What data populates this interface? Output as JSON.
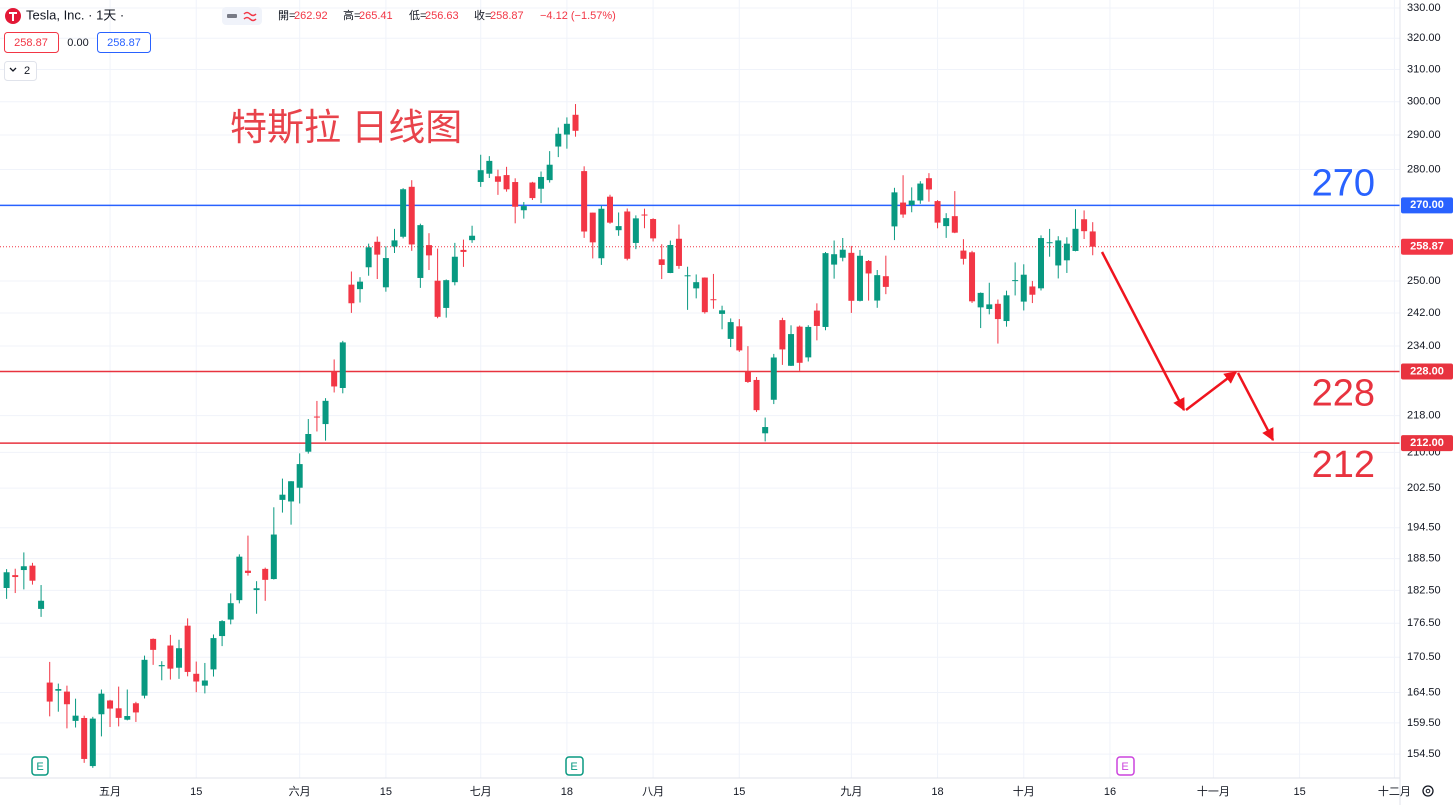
{
  "chart_data": {
    "type": "candlestick",
    "header": {
      "symbol": "Tesla, Inc. · 1天 ·",
      "ohlc": [
        [
          "開=",
          "262.92"
        ],
        [
          "高=",
          "265.41"
        ],
        [
          "低=",
          "256.63"
        ],
        [
          "收=",
          "258.87"
        ]
      ],
      "change": "−4.12 (−1.57%)",
      "bid": "258.87",
      "spread": "0.00",
      "ask": "258.87",
      "indicator_count": "2"
    },
    "annotation": "特斯拉 日线图",
    "earnings_markers": [
      "E",
      "E",
      "E"
    ],
    "log_scale": true,
    "grid": true,
    "up_color": "#089981",
    "down_color": "#f23645",
    "ylim": [
      150.8,
      332.7
    ],
    "yticks": [
      {
        "value": 330,
        "label": "330.00"
      },
      {
        "value": 320,
        "label": "320.00"
      },
      {
        "value": 310,
        "label": "310.00"
      },
      {
        "value": 300,
        "label": "300.00"
      },
      {
        "value": 290,
        "label": "290.00"
      },
      {
        "value": 280,
        "label": "280.00"
      },
      {
        "value": 250,
        "label": "250.00"
      },
      {
        "value": 242,
        "label": "242.00"
      },
      {
        "value": 234,
        "label": "234.00"
      },
      {
        "value": 218,
        "label": "218.00"
      },
      {
        "value": 210,
        "label": "210.00"
      },
      {
        "value": 202.5,
        "label": "202.50"
      },
      {
        "value": 194.5,
        "label": "194.50"
      },
      {
        "value": 188.5,
        "label": "188.50"
      },
      {
        "value": 182.5,
        "label": "182.50"
      },
      {
        "value": 176.5,
        "label": "176.50"
      },
      {
        "value": 170.5,
        "label": "170.50"
      },
      {
        "value": 164.5,
        "label": "164.50"
      },
      {
        "value": 159.5,
        "label": "159.50"
      },
      {
        "value": 154.5,
        "label": "154.50"
      }
    ],
    "levels": [
      {
        "value": 270,
        "label": "270.00",
        "color": "#2962ff"
      },
      {
        "value": 228,
        "label": "228.00",
        "color": "#e8333f"
      },
      {
        "value": 212,
        "label": "212.00",
        "color": "#e8333f"
      }
    ],
    "last_price": {
      "value": 258.87,
      "label": "258.87",
      "color": "#f23645"
    },
    "categories": [
      null,
      null,
      null,
      null,
      null,
      null,
      null,
      null,
      null,
      null,
      null,
      null,
      "五月",
      null,
      null,
      null,
      null,
      null,
      null,
      null,
      null,
      null,
      "15",
      null,
      null,
      null,
      null,
      null,
      null,
      null,
      null,
      null,
      null,
      null,
      "六月",
      null,
      null,
      null,
      null,
      null,
      null,
      null,
      null,
      null,
      "15",
      null,
      null,
      null,
      null,
      null,
      null,
      null,
      null,
      null,
      null,
      "七月",
      null,
      null,
      null,
      null,
      null,
      null,
      null,
      null,
      null,
      "18",
      null,
      null,
      null,
      null,
      null,
      null,
      null,
      null,
      null,
      "八月",
      null,
      null,
      null,
      null,
      null,
      null,
      null,
      null,
      null,
      "15",
      null,
      null,
      null,
      null,
      null,
      null,
      null,
      null,
      null,
      null,
      null,
      null,
      "九月",
      null,
      null,
      null,
      null,
      null,
      null,
      null,
      null,
      null,
      "18",
      null,
      null,
      null,
      null,
      null,
      null,
      null,
      null,
      null,
      "十月",
      null,
      null,
      null,
      null,
      null,
      null,
      null,
      null,
      null,
      "16",
      null,
      null,
      null,
      null,
      null,
      null,
      null,
      null,
      null,
      null,
      null,
      "十一月",
      null,
      null,
      null,
      null,
      null,
      null,
      null,
      null,
      null,
      "15",
      null,
      null,
      null,
      null,
      null,
      null,
      null,
      null,
      null,
      null,
      "十二月"
    ],
    "open": [
      182.95,
      185.36,
      186.32,
      187.15,
      179.1,
      166.17,
      164.8,
      164.65,
      159.82,
      160.29,
      152.64,
      160.9,
      163.17,
      161.88,
      160.01,
      162.71,
      163.97,
      173.72,
      168.95,
      172.55,
      168.7,
      176.07,
      167.66,
      165.65,
      168.41,
      174.22,
      177.17,
      180.7,
      186.2,
      182.56,
      186.54,
      184.62,
      200.1,
      199.78,
      202.59,
      210.15,
      217.8,
      216.14,
      228.0,
      224.22,
      249.07,
      247.94,
      253.51,
      260.17,
      248.4,
      258.92,
      261.5,
      275.13,
      250.77,
      259.29,
      250.07,
      243.24,
      249.7,
      258.03,
      260.6,
      276.49,
      278.82,
      278.09,
      278.43,
      276.47,
      268.65,
      276.33,
      274.59,
      277.01,
      286.63,
      290.15,
      296.04,
      279.56,
      268.0,
      255.85,
      272.38,
      263.25,
      268.31,
      259.86,
      267.48,
      266.26,
      255.57,
      252.04,
      260.97,
      251.45,
      248.13,
      250.87,
      245.4,
      241.77,
      235.7,
      238.73,
      228.02,
      226.06,
      214.12,
      221.55,
      240.25,
      229.34,
      238.66,
      231.31,
      242.58,
      238.58,
      254.2,
      255.98,
      257.26,
      245.0,
      255.14,
      245.07,
      251.22,
      264.27,
      270.76,
      270.07,
      271.32,
      277.55,
      271.16,
      264.35,
      267.04,
      257.85,
      257.4,
      243.38,
      242.98,
      244.26,
      240.02,
      250.0,
      244.81,
      248.61,
      248.14,
      260.0,
      253.98,
      255.31,
      257.75,
      266.2,
      262.92,
      null,
      null,
      null,
      null,
      null,
      null,
      null,
      null,
      null,
      null,
      null,
      null,
      null,
      null,
      null,
      null,
      null,
      null,
      null,
      null,
      null,
      null,
      null,
      null,
      null,
      null,
      null,
      null,
      null,
      null,
      null,
      null,
      null,
      null,
      null
    ],
    "high": [
      186.5,
      186.57,
      189.69,
      187.69,
      183.5,
      169.7,
      166.0,
      165.65,
      163.47,
      160.67,
      160.48,
      165.0,
      163.28,
      165.49,
      165.0,
      162.95,
      170.79,
      173.8,
      169.82,
      174.43,
      173.57,
      177.38,
      169.76,
      169.52,
      174.5,
      177.06,
      181.95,
      189.32,
      192.96,
      184.22,
      186.78,
      198.6,
      204.48,
      203.95,
      209.8,
      217.25,
      221.29,
      221.91,
      230.83,
      235.23,
      252.42,
      250.97,
      259.68,
      261.57,
      258.95,
      263.6,
      274.75,
      276.99,
      265.0,
      262.45,
      258.37,
      250.39,
      259.88,
      260.74,
      264.45,
      284.25,
      283.85,
      279.97,
      280.78,
      277.52,
      270.9,
      276.52,
      279.45,
      285.3,
      292.23,
      295.26,
      299.29,
      280.93,
      268.0,
      269.85,
      272.9,
      268.04,
      269.13,
      267.25,
      269.08,
      266.47,
      259.52,
      260.49,
      264.77,
      253.65,
      251.67,
      250.92,
      251.8,
      243.79,
      240.66,
      240.5,
      233.97,
      226.74,
      217.58,
      232.13,
      240.82,
      238.98,
      238.92,
      239.0,
      244.38,
      257.48,
      260.51,
      261.18,
      259.08,
      258.0,
      255.39,
      252.81,
      256.52,
      274.85,
      278.39,
      274.98,
      276.71,
      278.98,
      271.44,
      267.85,
      273.93,
      260.86,
      257.79,
      247.1,
      249.55,
      245.33,
      247.55,
      254.77,
      254.28,
      250.02,
      261.86,
      263.6,
      261.65,
      261.36,
      268.94,
      268.6,
      265.41,
      null,
      null,
      null,
      null,
      null,
      null,
      null,
      null,
      null,
      null,
      null,
      null,
      null,
      null,
      null,
      null,
      null,
      null,
      null,
      null,
      null,
      null,
      null,
      null,
      null,
      null,
      null,
      null,
      null,
      null,
      null,
      null,
      null,
      null,
      null
    ],
    "low": [
      180.94,
      182.01,
      182.69,
      183.58,
      177.65,
      160.56,
      161.32,
      158.61,
      158.75,
      153.14,
      152.37,
      157.32,
      158.83,
      158.93,
      159.91,
      159.65,
      163.51,
      169.19,
      166.56,
      166.68,
      166.79,
      167.23,
      164.55,
      164.35,
      167.19,
      172.45,
      176.31,
      180.11,
      185.26,
      178.22,
      180.58,
      184.53,
      197.53,
      195.12,
      199.37,
      209.75,
      214.52,
      212.53,
      223.2,
      223.01,
      242.02,
      244.59,
      251.34,
      250.5,
      247.29,
      257.21,
      261.07,
      257.78,
      248.25,
      252.8,
      240.7,
      240.85,
      248.89,
      253.61,
      259.89,
      275.11,
      277.6,
      272.88,
      273.77,
      265.1,
      266.37,
      271.46,
      270.6,
      276.31,
      283.57,
      286.01,
      289.52,
      261.2,
      255.8,
      254.12,
      265.0,
      261.75,
      255.3,
      258.23,
      263.78,
      260.25,
      250.49,
      252.0,
      253.11,
      242.76,
      245.62,
      241.83,
      243.04,
      238.02,
      233.75,
      232.61,
      225.38,
      218.83,
      212.36,
      220.58,
      229.55,
      229.29,
      228.18,
      230.35,
      235.35,
      237.77,
      250.59,
      255.05,
      242.01,
      244.86,
      245.06,
      243.27,
      246.67,
      260.61,
      266.6,
      268.1,
      270.42,
      271.0,
      263.76,
      261.2,
      262.46,
      254.21,
      244.48,
      238.31,
      241.66,
      234.58,
      238.65,
      246.35,
      242.62,
      244.45,
      247.6,
      256.25,
      250.65,
      252.05,
      257.65,
      260.9,
      256.63,
      null,
      null,
      null,
      null,
      null,
      null,
      null,
      null,
      null,
      null,
      null,
      null,
      null,
      null,
      null,
      null,
      null,
      null,
      null,
      null,
      null,
      null,
      null,
      null,
      null,
      null,
      null,
      null,
      null,
      null,
      null,
      null,
      null,
      null,
      null
    ],
    "close": [
      185.9,
      185.0,
      187.04,
      184.31,
      180.59,
      162.99,
      165.08,
      162.55,
      160.67,
      153.75,
      160.19,
      164.31,
      161.83,
      160.31,
      160.61,
      161.2,
      170.06,
      171.79,
      169.15,
      168.54,
      172.08,
      167.98,
      166.35,
      166.52,
      173.86,
      176.89,
      180.14,
      188.87,
      185.77,
      182.9,
      184.47,
      193.17,
      201.16,
      203.93,
      207.52,
      213.97,
      217.61,
      221.31,
      224.57,
      234.86,
      244.4,
      249.83,
      258.71,
      256.79,
      255.9,
      260.54,
      274.45,
      259.46,
      264.61,
      256.6,
      241.05,
      250.21,
      256.24,
      257.5,
      261.77,
      279.82,
      282.48,
      276.54,
      274.43,
      269.61,
      269.79,
      271.99,
      277.9,
      281.38,
      290.38,
      293.34,
      291.26,
      262.9,
      260.02,
      269.06,
      265.28,
      264.35,
      255.71,
      266.44,
      267.43,
      261.07,
      254.11,
      259.32,
      253.86,
      251.45,
      249.7,
      242.19,
      245.34,
      242.65,
      239.76,
      232.96,
      225.6,
      219.22,
      215.49,
      231.28,
      233.19,
      236.86,
      230.04,
      238.59,
      238.82,
      257.18,
      256.9,
      258.08,
      245.01,
      256.49,
      251.92,
      251.49,
      248.5,
      273.58,
      267.48,
      271.3,
      276.04,
      274.39,
      265.28,
      266.5,
      262.59,
      255.7,
      244.88,
      246.99,
      244.12,
      240.5,
      246.38,
      250.22,
      251.6,
      246.53,
      261.16,
      260.05,
      260.53,
      259.67,
      263.62,
      262.99,
      258.87,
      null,
      null,
      null,
      null,
      null,
      null,
      null,
      null,
      null,
      null,
      null,
      null,
      null,
      null,
      null,
      null,
      null,
      null,
      null,
      null,
      null,
      null,
      null,
      null,
      null,
      null,
      null,
      null,
      null,
      null,
      null,
      null,
      null,
      null,
      null
    ]
  }
}
